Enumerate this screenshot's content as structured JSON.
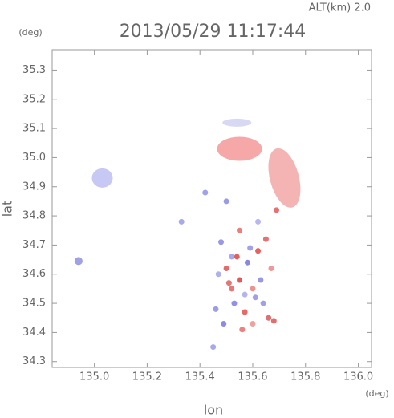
{
  "chart_data": {
    "type": "scatter",
    "title": "2013/05/29 11:17:44",
    "subtitle": "ALT(km) 2.0",
    "x_label": "lon",
    "y_label": "lat",
    "x_unit": "(deg)",
    "y_unit": "(deg)",
    "xlim": [
      134.84,
      136.05
    ],
    "ylim": [
      34.28,
      35.37
    ],
    "xticks": [
      {
        "value": 135,
        "label": "135.0"
      },
      135.2,
      135.4,
      135.6,
      135.8,
      {
        "value": 136,
        "label": "136.0"
      }
    ],
    "yticks": [
      34.3,
      34.4,
      34.5,
      34.6,
      34.7,
      34.8,
      34.9,
      {
        "value": 35,
        "label": "35.0"
      },
      35.1,
      35.2,
      35.3
    ],
    "x": [
      135.55,
      135.72,
      135.03,
      134.94,
      135.54,
      135.48,
      135.5,
      135.52,
      135.55,
      135.58,
      135.6,
      135.62,
      135.65,
      135.47,
      135.53,
      135.57,
      135.61,
      135.66,
      135.49,
      135.56,
      135.63,
      135.52,
      135.59,
      135.67,
      135.46,
      135.54,
      135.6,
      135.64,
      135.51,
      135.57,
      135.68,
      135.45,
      135.62,
      135.5,
      135.55,
      135.69,
      135.33,
      135.42
    ],
    "values": [
      35.03,
      34.93,
      34.93,
      34.645,
      35.12,
      34.71,
      34.62,
      34.66,
      34.58,
      34.64,
      34.55,
      34.68,
      34.72,
      34.6,
      34.5,
      34.47,
      34.52,
      34.45,
      34.43,
      34.41,
      34.58,
      34.55,
      34.69,
      34.62,
      34.48,
      34.66,
      34.43,
      34.5,
      34.57,
      34.53,
      34.44,
      34.35,
      34.78,
      34.85,
      34.75,
      34.82,
      34.78,
      34.88
    ],
    "colors": [
      "#f6a8a8",
      "#f4b4b4",
      "#c8c8f4",
      "#a0a0e4",
      "#d8d8f4",
      "#9898e8",
      "#e86868",
      "#a8a8ec",
      "#e05858",
      "#8888e0",
      "#f09090",
      "#e86060",
      "#e87070",
      "#b0b0ee",
      "#9090e4",
      "#e86868",
      "#a0a0e8",
      "#e07070",
      "#8c8ce4",
      "#f08080",
      "#9898e4",
      "#e87878",
      "#a0a0ec",
      "#f09898",
      "#9c9ce8",
      "#e06060",
      "#f0a0a0",
      "#a0a0e8",
      "#e07878",
      "#b4b4f0",
      "#e86c6c",
      "#a8a8ec",
      "#b8b8f0",
      "#9a9ae8",
      "#e88080",
      "#e87070",
      "#a8a8ec",
      "#a0a0ec"
    ]
  }
}
